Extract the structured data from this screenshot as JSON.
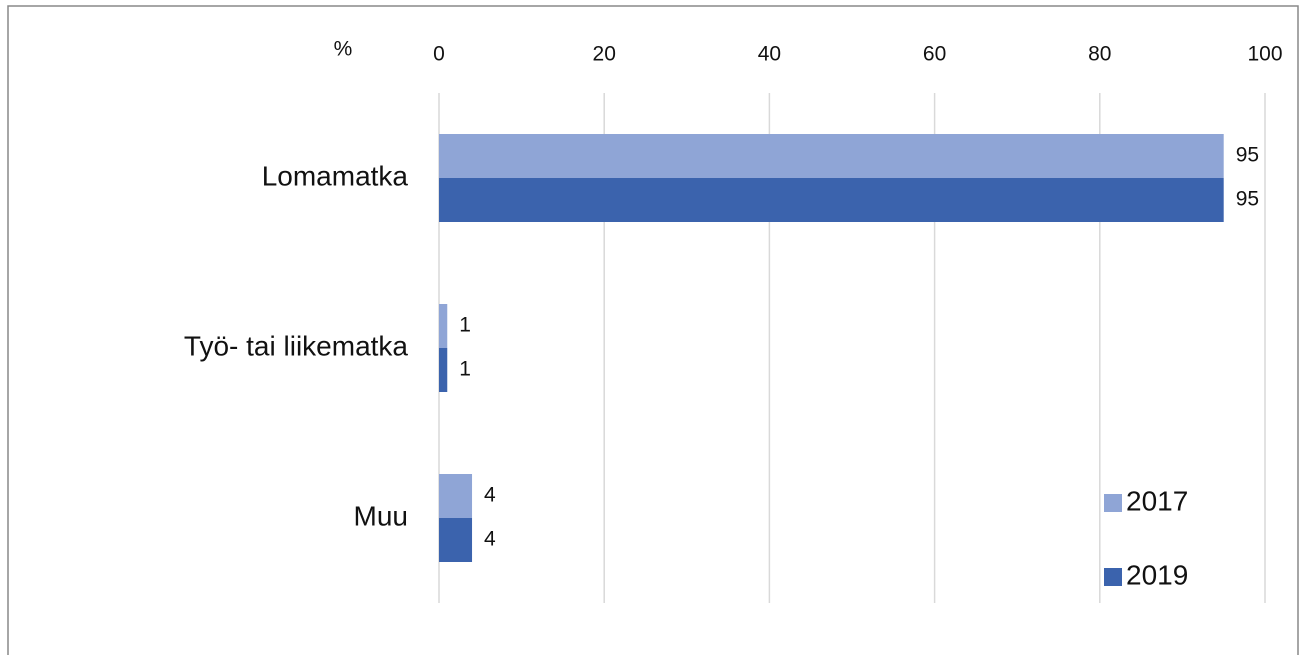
{
  "chart_data": {
    "type": "bar",
    "orientation": "horizontal",
    "xlabel": "%",
    "categories": [
      "Lomamatka",
      "Työ- tai liikematka",
      "Muu"
    ],
    "series": [
      {
        "name": "2017",
        "color": "#8fa5d6",
        "values": [
          95,
          1,
          4
        ]
      },
      {
        "name": "2019",
        "color": "#3b63ad",
        "values": [
          95,
          1,
          4
        ]
      }
    ],
    "xlim": [
      0,
      100
    ],
    "xticks": [
      0,
      20,
      40,
      60,
      80,
      100
    ],
    "grid": true,
    "legend": "lower right"
  }
}
